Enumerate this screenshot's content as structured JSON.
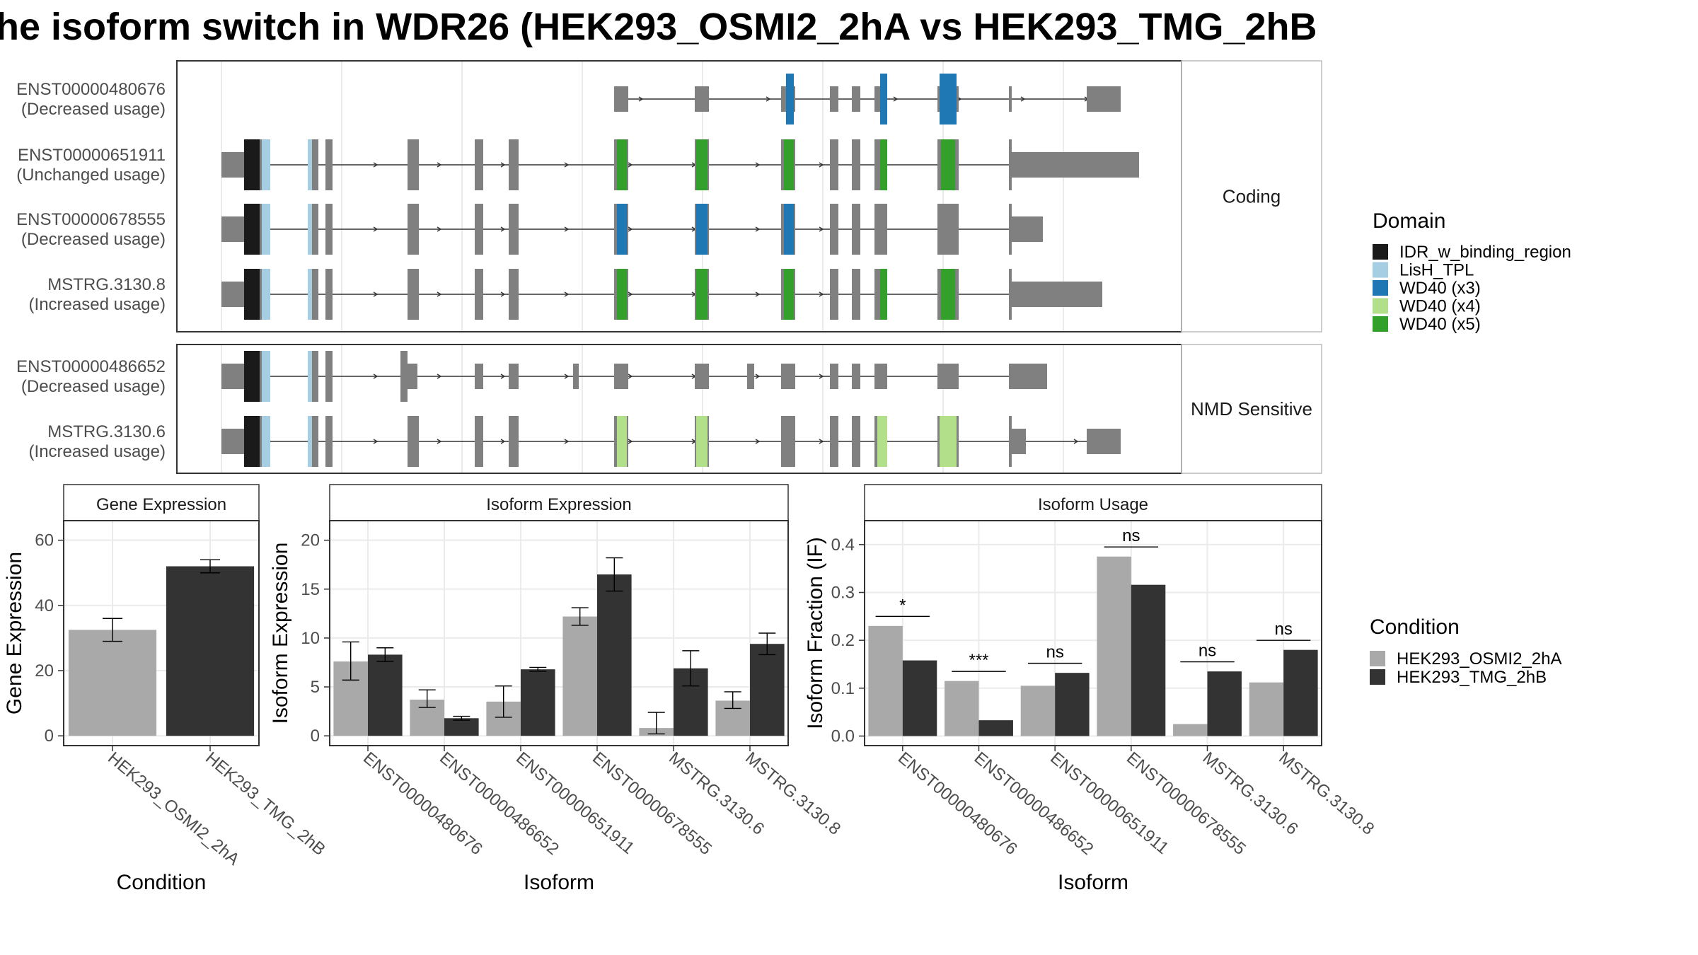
{
  "title": "he isoform switch in WDR26 (HEK293_OSMI2_2hA vs HEK293_TMG_2hB",
  "colors": {
    "exon": "#808080",
    "IDR_w_binding_region": "#1a1a1a",
    "LisH_TPL": "#a6cee3",
    "WD40 (x3)": "#1f78b4",
    "WD40 (x4)": "#b2df8a",
    "WD40 (x5)": "#33a02c",
    "cond_a": "#a9a9a9",
    "cond_b": "#333333"
  },
  "structure": {
    "panels": [
      {
        "strip": "Coding",
        "transcripts": [
          {
            "id": "ENST00000480676",
            "usage": "(Decreased usage)"
          },
          {
            "id": "ENST00000651911",
            "usage": "(Unchanged usage)"
          },
          {
            "id": "ENST00000678555",
            "usage": "(Decreased usage)"
          },
          {
            "id": "MSTRG.3130.8",
            "usage": "(Increased usage)"
          }
        ]
      },
      {
        "strip": "NMD Sensitive",
        "transcripts": [
          {
            "id": "ENST00000486652",
            "usage": "(Decreased usage)"
          },
          {
            "id": "MSTRG.3130.6",
            "usage": "(Increased usage)"
          }
        ]
      }
    ],
    "legend": {
      "title": "Domain",
      "items": [
        "IDR_w_binding_region",
        "LisH_TPL",
        "WD40 (x3)",
        "WD40 (x4)",
        "WD40 (x5)"
      ]
    }
  },
  "chart_data": [
    {
      "type": "bar",
      "strip": "Gene Expression",
      "xlabel": "Condition",
      "ylabel": "Gene Expression",
      "ylim": [
        -3,
        66
      ],
      "yticks": [
        0,
        20,
        40,
        60
      ],
      "categories": [
        "HEK293_OSMI2_2hA",
        "HEK293_TMG_2hB"
      ],
      "values": [
        32.5,
        52
      ],
      "errors": [
        [
          29,
          36
        ],
        [
          50,
          54
        ]
      ]
    },
    {
      "type": "bar",
      "strip": "Isoform Expression",
      "xlabel": "Isoform",
      "ylabel": "Isoform Expression",
      "ylim": [
        -1,
        22
      ],
      "yticks": [
        0,
        5,
        10,
        15,
        20
      ],
      "categories": [
        "ENST00000480676",
        "ENST00000486652",
        "ENST00000651911",
        "ENST00000678555",
        "MSTRG.3130.6",
        "MSTRG.3130.8"
      ],
      "series": [
        {
          "name": "HEK293_OSMI2_2hA",
          "values": [
            7.6,
            3.7,
            3.5,
            12.2,
            0.8,
            3.6
          ],
          "errors": [
            [
              5.7,
              9.6
            ],
            [
              2.9,
              4.7
            ],
            [
              1.9,
              5.1
            ],
            [
              11.3,
              13.1
            ],
            [
              0.2,
              2.4
            ],
            [
              2.8,
              4.5
            ]
          ]
        },
        {
          "name": "HEK293_TMG_2hB",
          "values": [
            8.3,
            1.8,
            6.8,
            16.5,
            6.9,
            9.4
          ],
          "errors": [
            [
              7.6,
              9.0
            ],
            [
              1.6,
              2.0
            ],
            [
              6.6,
              7.0
            ],
            [
              14.8,
              18.2
            ],
            [
              5.1,
              8.7
            ],
            [
              8.3,
              10.5
            ]
          ]
        }
      ]
    },
    {
      "type": "bar",
      "strip": "Isoform Usage",
      "xlabel": "Isoform",
      "ylabel": "Isoform Fraction (IF)",
      "ylim": [
        -0.02,
        0.45
      ],
      "yticks": [
        0.0,
        0.1,
        0.2,
        0.3,
        0.4
      ],
      "ytick_labels": [
        "0.0",
        "0.1",
        "0.2",
        "0.3",
        "0.4"
      ],
      "categories": [
        "ENST00000480676",
        "ENST00000486652",
        "ENST00000651911",
        "ENST00000678555",
        "MSTRG.3130.6",
        "MSTRG.3130.8"
      ],
      "series": [
        {
          "name": "HEK293_OSMI2_2hA",
          "values": [
            0.23,
            0.115,
            0.105,
            0.375,
            0.025,
            0.112
          ]
        },
        {
          "name": "HEK293_TMG_2hB",
          "values": [
            0.158,
            0.033,
            0.132,
            0.316,
            0.135,
            0.18
          ]
        }
      ],
      "significance": [
        "*",
        "***",
        "ns",
        "ns",
        "ns",
        "ns"
      ],
      "legend": {
        "title": "Condition",
        "items": [
          "HEK293_OSMI2_2hA",
          "HEK293_TMG_2hB"
        ]
      }
    }
  ]
}
